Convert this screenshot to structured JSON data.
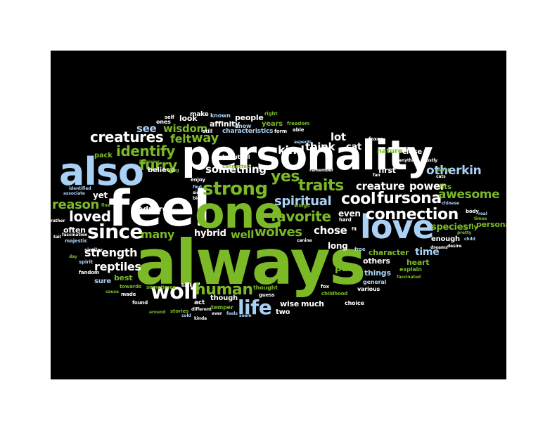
{
  "colors": {
    "background": "#000000",
    "green": "#7bb927",
    "light_blue": "#a9d1f5",
    "white": "#ffffff",
    "yellow": "#d7d56b"
  },
  "words": {
    "always": "always",
    "personality": "personality",
    "feel": "feel",
    "one": "one",
    "also": "also",
    "love": "love",
    "strong": "strong",
    "creatures": "creatures",
    "identify": "identify",
    "furry": "furry",
    "wolf": "wolf",
    "life": "life",
    "since": "since",
    "loved": "loved",
    "human": "human",
    "connection": "connection",
    "fursona": "fursona",
    "awesome": "awesome",
    "traits": "traits",
    "yes": "yes",
    "cool": "cool",
    "otherkin": "otherkin",
    "spiritual": "spiritual",
    "favorite": "favorite",
    "wolves": "wolves",
    "reason": "reason",
    "reptiles": "reptiles",
    "strength": "strength",
    "many": "many",
    "something": "something",
    "creature": "creature",
    "power": "power",
    "kind": "kind",
    "think": "think",
    "lot": "lot",
    "cat": "cat",
    "way": "way",
    "felt": "felt",
    "see": "see",
    "wisdom": "wisdom",
    "look": "look",
    "affinity": "affinity",
    "people": "people",
    "hybrid": "hybrid",
    "well": "well",
    "chose": "chose",
    "even": "even",
    "long": "long",
    "first": "first",
    "species": "species",
    "enough": "enough",
    "time": "time",
    "heart": "heart",
    "others": "others",
    "things": "things",
    "character": "character",
    "part": "part",
    "much": "much",
    "wise": "wise",
    "two": "two",
    "best": "best",
    "sure": "sure",
    "yet": "yet",
    "often": "often",
    "admire": "admire",
    "believe": "believe",
    "pack": "pack",
    "personal": "personal",
    "fly": "fly",
    "fits": "fits",
    "nature": "nature",
    "close": "close",
    "years": "years",
    "beautiful": "beautiful",
    "characteristics": "characteristics",
    "make": "make",
    "known": "known",
    "right": "right",
    "self": "self",
    "ones": "ones",
    "still": "still",
    "form": "form",
    "able": "able",
    "freedom": "freedom",
    "foxes": "foxes",
    "anything": "anything",
    "mostly": "mostly",
    "remember": "remember",
    "world": "world",
    "cats": "cats",
    "chinese": "chinese",
    "body": "body",
    "real": "real",
    "times": "times",
    "pretty": "pretty",
    "child": "child",
    "desire": "desire",
    "dreams": "dreams",
    "free": "free",
    "explain": "explain",
    "general": "general",
    "fascinated": "fascinated",
    "various": "various",
    "choice": "choice",
    "childhood": "childhood",
    "fox": "fox",
    "guess": "guess",
    "thought": "thought",
    "seem": "seem",
    "feels": "feels",
    "ever": "ever",
    "temper": "temper",
    "though": "though",
    "act": "act",
    "stories": "stories",
    "different": "different",
    "kinda": "kinda",
    "cold": "cold",
    "around": "around",
    "found": "found",
    "made": "made",
    "towards": "towards",
    "sometimes": "sometimes",
    "back": "back",
    "cause": "cause",
    "spirit": "spirit",
    "day": "day",
    "similar": "similar",
    "fandom": "fandom",
    "majestic": "majestic",
    "tail": "tail",
    "fascination": "fascination",
    "associate": "associate",
    "identified": "identified",
    "rather": "rather",
    "fine": "fine",
    "behavior": "behavior",
    "flying": "flying",
    "enjoy": "enjoy",
    "find": "find",
    "side": "side",
    "big": "big",
    "wings": "wings",
    "hard": "hard",
    "fit": "fit",
    "canine": "canine",
    "aspects": "aspects",
    "fan": "fan",
    "know": "know",
    "connected": "connected"
  }
}
